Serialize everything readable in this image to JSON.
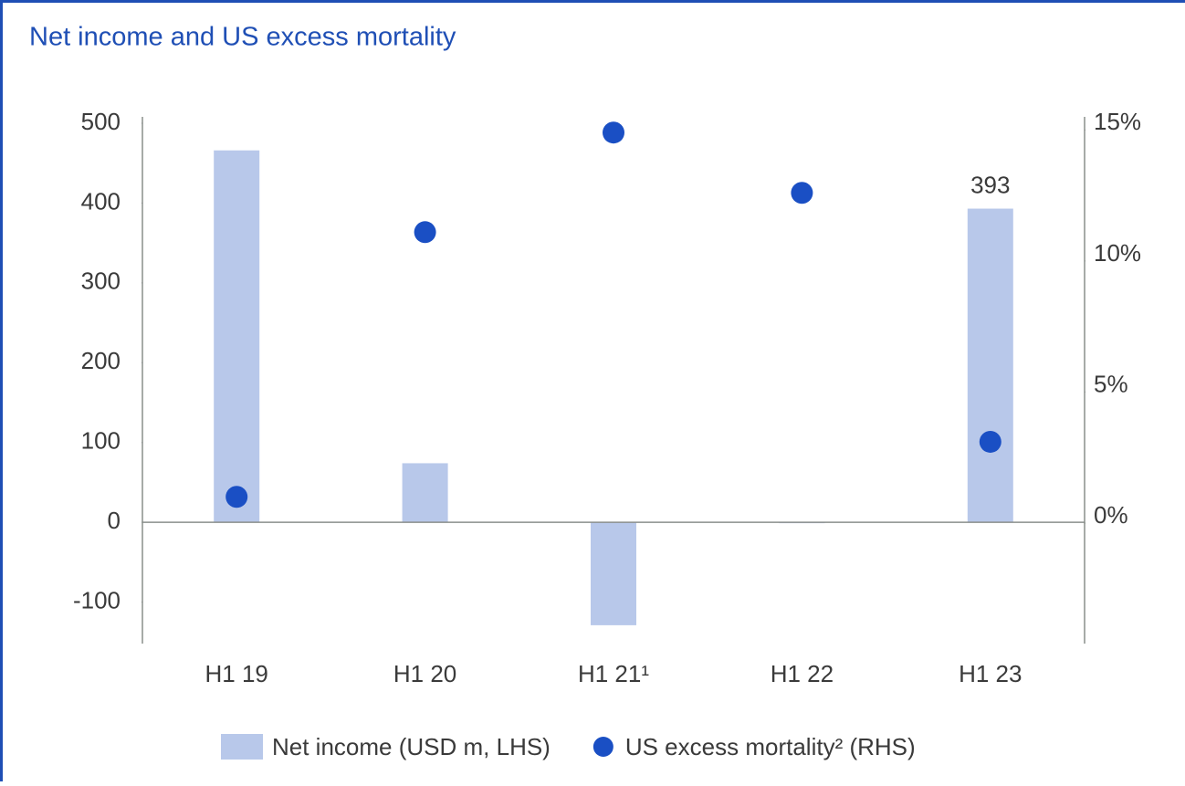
{
  "chart_data": {
    "type": "bar",
    "title": "Net income and US excess mortality",
    "categories": [
      "H1 19",
      "H1 20",
      "H1 21¹",
      "H1 22",
      "H1 23"
    ],
    "series": [
      {
        "name": "Net income (USD m, LHS)",
        "color": "#b8c8ea",
        "type": "bar",
        "values": [
          466,
          74,
          -129,
          0,
          393
        ],
        "value_labels": [
          null,
          null,
          null,
          null,
          "393"
        ]
      },
      {
        "name": "US excess mortality² (RHS)",
        "color": "#1a4fc4",
        "type": "scatter",
        "axis": "y2",
        "values": [
          1.0,
          11.1,
          14.9,
          12.6,
          3.1
        ]
      }
    ],
    "ylim": [
      -152,
      508
    ],
    "yticks": [
      -100,
      0,
      100,
      200,
      300,
      400,
      500
    ],
    "y2lim": [
      -4.6,
      15.5
    ],
    "y2ticks": [
      {
        "value": 0,
        "label": "0%"
      },
      {
        "value": 5,
        "label": "5%"
      },
      {
        "value": 10,
        "label": "10%"
      },
      {
        "value": 15,
        "label": "15%"
      }
    ],
    "grid": false,
    "legend": "bottom"
  }
}
